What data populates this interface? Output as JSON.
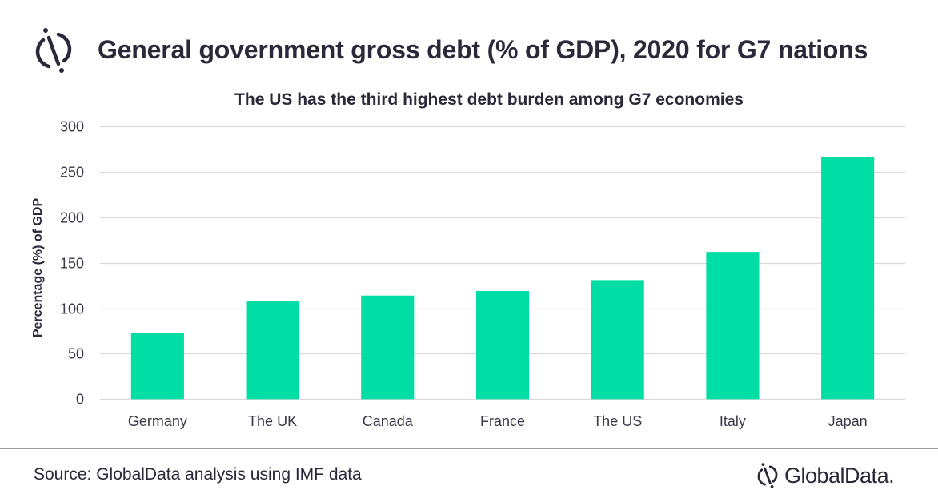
{
  "header": {
    "logo_icon": "globaldata-logo-icon",
    "title": "General government gross debt (% of GDP), 2020 for G7 nations",
    "subtitle": "The US has the third highest debt burden among G7 economies"
  },
  "footer": {
    "source": "Source: GlobalData analysis using IMF data",
    "brand_name": "GlobalData.",
    "brand_icon": "globaldata-logo-icon"
  },
  "colors": {
    "bar": "#00DDA5",
    "text": "#2A2839",
    "grid": "#D9D9D9"
  },
  "chart_data": {
    "type": "bar",
    "title": "General government gross debt (% of GDP), 2020 for G7 nations",
    "subtitle": "The US has the third highest debt burden among G7 economies",
    "xlabel": "",
    "ylabel": "Percentage (%) of GDP",
    "categories": [
      "Germany",
      "The UK",
      "Canada",
      "France",
      "The US",
      "Italy",
      "Japan"
    ],
    "values": [
      73,
      108,
      114,
      119,
      131,
      162,
      266
    ],
    "ylim": [
      0,
      300
    ],
    "yticks": [
      0,
      50,
      100,
      150,
      200,
      250,
      300
    ],
    "grid": true,
    "legend": "none"
  }
}
